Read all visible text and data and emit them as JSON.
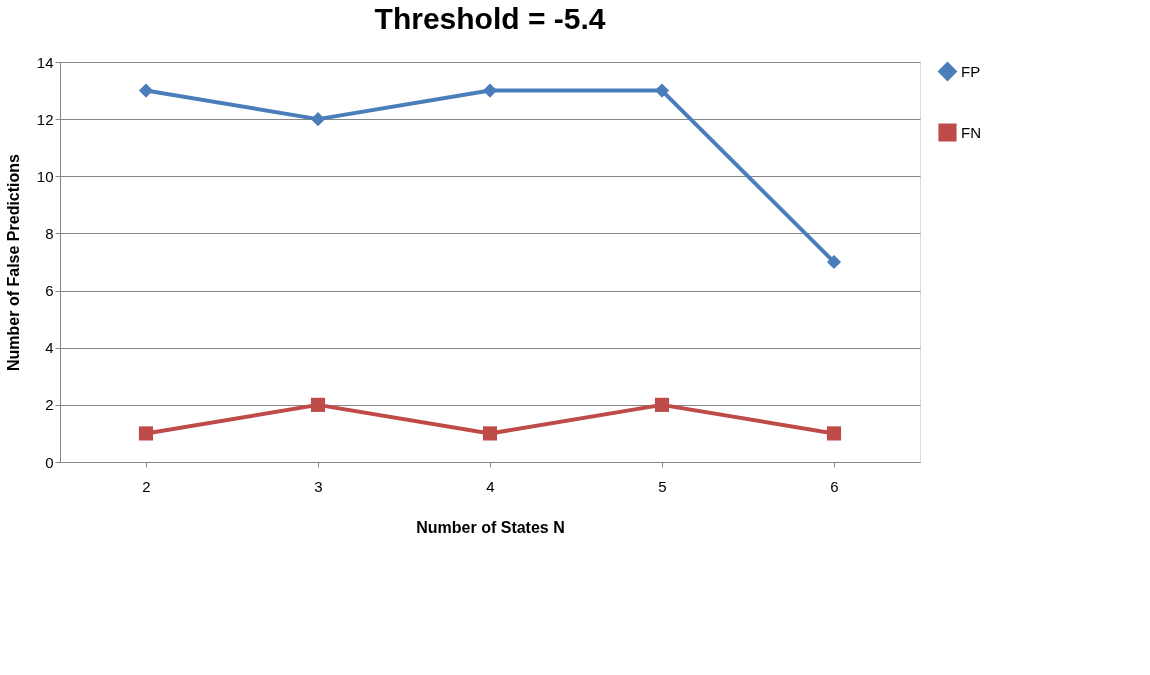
{
  "chart_data": {
    "type": "line",
    "title": "Threshold = -5.4",
    "xlabel": "Number of States N",
    "ylabel": "Number of False Predictions",
    "categories": [
      "2",
      "3",
      "4",
      "5",
      "6"
    ],
    "series": [
      {
        "name": "FP",
        "color": "#4a7ebb",
        "marker": "diamond",
        "values": [
          13,
          12,
          13,
          13,
          7
        ]
      },
      {
        "name": "FN",
        "color": "#be4b48",
        "marker": "square",
        "values": [
          1,
          2,
          1,
          2,
          1
        ]
      }
    ],
    "ylim": [
      0,
      14
    ],
    "yticks": [
      0,
      2,
      4,
      6,
      8,
      10,
      12,
      14
    ],
    "grid": "y",
    "legend": "right"
  }
}
